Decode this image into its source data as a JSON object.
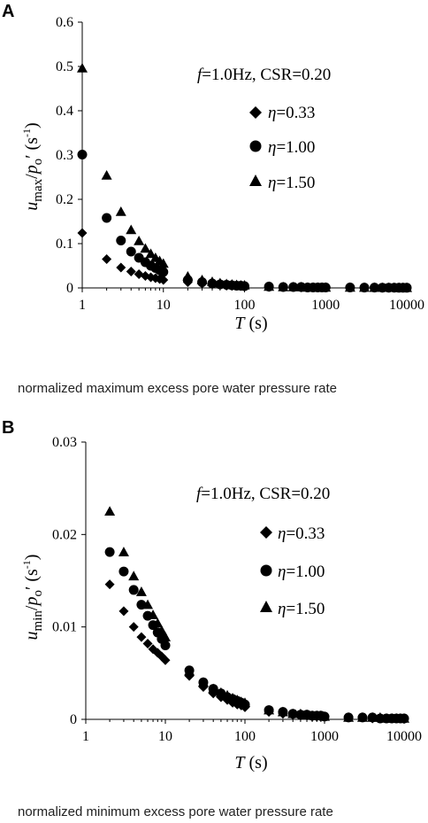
{
  "chart_data": [
    {
      "type": "scatter",
      "panel": "A",
      "caption": "normalized maximum excess pore water pressure rate",
      "xlabel": {
        "italic": "T",
        "rest": " (s)"
      },
      "ylabel": {
        "italic1": "u",
        "sub1": "max",
        "slash": "/",
        "italic2": "p",
        "sub2": "o",
        "rest": "′ (s",
        "sup": "-1",
        "end": ")"
      },
      "xscale": "log",
      "xlim": [
        1,
        10000
      ],
      "ylim": [
        0,
        0.6
      ],
      "yticks": [
        0,
        0.1,
        0.2,
        0.3,
        0.4,
        0.5,
        0.6
      ],
      "ytick_labels": [
        "0",
        "0.1",
        "0.2",
        "0.3",
        "0.4",
        "0.5",
        "0.6"
      ],
      "xticks": [
        1,
        10,
        100,
        1000,
        10000
      ],
      "xtick_labels": [
        "1",
        "10",
        "100",
        "1000",
        "10000"
      ],
      "condition": {
        "f_italic": "f",
        "f_rest": "=1.0Hz,  CSR=0.20"
      },
      "series": [
        {
          "name": "η=0.33",
          "eta_italic": "η",
          "eta_value": "=0.33",
          "marker": "diamond",
          "x": [
            1,
            2,
            3,
            4,
            5,
            6,
            7,
            8,
            9,
            10,
            20,
            30,
            40,
            50,
            60,
            70,
            80,
            90,
            100,
            200,
            300,
            400,
            500,
            600,
            700,
            800,
            900,
            1000,
            2000,
            3000,
            4000,
            5000,
            6000,
            7000,
            8000,
            9000,
            10000
          ],
          "y": [
            0.124,
            0.065,
            0.046,
            0.037,
            0.031,
            0.027,
            0.024,
            0.022,
            0.02,
            0.018,
            0.013,
            0.01,
            0.008,
            0.007,
            0.006,
            0.005,
            0.005,
            0.004,
            0.004,
            0.002,
            0.002,
            0.002,
            0.001,
            0.001,
            0.001,
            0.001,
            0.001,
            0.001,
            0.001,
            0.0008,
            0.0007,
            0.0006,
            0.0005,
            0.0005,
            0.0004,
            0.0004,
            0.0004
          ]
        },
        {
          "name": "η=1.00",
          "eta_italic": "η",
          "eta_value": "=1.00",
          "marker": "circle",
          "x": [
            1,
            2,
            3,
            4,
            5,
            6,
            7,
            8,
            9,
            10,
            20,
            30,
            40,
            50,
            60,
            70,
            80,
            90,
            100,
            200,
            300,
            400,
            500,
            600,
            700,
            800,
            900,
            1000,
            2000,
            3000,
            4000,
            5000,
            6000,
            7000,
            8000,
            9000,
            10000
          ],
          "y": [
            0.301,
            0.158,
            0.107,
            0.082,
            0.068,
            0.058,
            0.05,
            0.045,
            0.04,
            0.036,
            0.018,
            0.013,
            0.01,
            0.008,
            0.007,
            0.006,
            0.005,
            0.005,
            0.004,
            0.003,
            0.002,
            0.002,
            0.002,
            0.001,
            0.001,
            0.001,
            0.001,
            0.001,
            0.001,
            0.0008,
            0.0007,
            0.0006,
            0.0005,
            0.0005,
            0.0004,
            0.0004,
            0.0004
          ]
        },
        {
          "name": "η=1.50",
          "eta_italic": "η",
          "eta_value": "=1.50",
          "marker": "triangle",
          "x": [
            1,
            2,
            3,
            4,
            5,
            6,
            7,
            8,
            9,
            10,
            20,
            30,
            40,
            50,
            60,
            70,
            80,
            90,
            100,
            200,
            300,
            400,
            500,
            600,
            700,
            800,
            900,
            1000,
            2000,
            3000,
            4000,
            5000,
            6000,
            7000,
            8000,
            9000,
            10000
          ],
          "y": [
            0.496,
            0.254,
            0.172,
            0.131,
            0.106,
            0.089,
            0.077,
            0.068,
            0.061,
            0.055,
            0.026,
            0.018,
            0.014,
            0.011,
            0.009,
            0.008,
            0.007,
            0.006,
            0.006,
            0.003,
            0.002,
            0.002,
            0.002,
            0.001,
            0.001,
            0.001,
            0.001,
            0.001,
            0.001,
            0.0008,
            0.0007,
            0.0006,
            0.0005,
            0.0005,
            0.0004,
            0.0004,
            0.0004
          ]
        }
      ]
    },
    {
      "type": "scatter",
      "panel": "B",
      "caption": "normalized minimum excess pore water pressure rate",
      "xlabel": {
        "italic": "T",
        "rest": " (s)"
      },
      "ylabel": {
        "italic1": "u",
        "sub1": "min",
        "slash": "/",
        "italic2": "p",
        "sub2": "o",
        "rest": "′ (s",
        "sup": "-1",
        "end": ")"
      },
      "xscale": "log",
      "xlim": [
        1,
        10000
      ],
      "ylim": [
        0,
        0.03
      ],
      "yticks": [
        0,
        0.01,
        0.02,
        0.03
      ],
      "ytick_labels": [
        "0",
        "0.01",
        "0.02",
        "0.03"
      ],
      "xticks": [
        1,
        10,
        100,
        1000,
        10000
      ],
      "xtick_labels": [
        "1",
        "10",
        "100",
        "1000",
        "10000"
      ],
      "condition": {
        "f_italic": "f",
        "f_rest": "=1.0Hz,  CSR=0.20"
      },
      "series": [
        {
          "name": "η=0.33",
          "eta_italic": "η",
          "eta_value": "=0.33",
          "marker": "diamond",
          "x": [
            2,
            3,
            4,
            5,
            6,
            7,
            8,
            9,
            10,
            20,
            30,
            40,
            50,
            60,
            70,
            80,
            90,
            100,
            200,
            300,
            400,
            500,
            600,
            700,
            800,
            900,
            1000,
            2000,
            3000,
            4000,
            5000,
            6000,
            7000,
            8000,
            9000,
            10000
          ],
          "y": [
            0.0146,
            0.0117,
            0.01,
            0.0089,
            0.0082,
            0.0076,
            0.0072,
            0.0068,
            0.0064,
            0.0047,
            0.0035,
            0.0028,
            0.0024,
            0.0021,
            0.0018,
            0.0016,
            0.0015,
            0.0013,
            0.0008,
            0.0006,
            0.0005,
            0.0004,
            0.0004,
            0.0003,
            0.0003,
            0.0003,
            0.0003,
            0.0002,
            0.0002,
            0.0001,
            0.0001,
            0.0001,
            0.0001,
            0.0001,
            0.0001,
            0.0001
          ]
        },
        {
          "name": "η=1.00",
          "eta_italic": "η",
          "eta_value": "=1.00",
          "marker": "circle",
          "x": [
            2,
            3,
            4,
            5,
            6,
            7,
            8,
            9,
            10,
            20,
            30,
            40,
            50,
            60,
            70,
            80,
            90,
            100,
            200,
            300,
            400,
            500,
            600,
            700,
            800,
            900,
            1000,
            2000,
            3000,
            4000,
            5000,
            6000,
            7000,
            8000,
            9000,
            10000
          ],
          "y": [
            0.0181,
            0.016,
            0.014,
            0.0124,
            0.0112,
            0.0102,
            0.0094,
            0.0087,
            0.008,
            0.0053,
            0.004,
            0.0033,
            0.0028,
            0.0024,
            0.0022,
            0.002,
            0.0018,
            0.0016,
            0.001,
            0.0008,
            0.0006,
            0.0005,
            0.0005,
            0.0004,
            0.0004,
            0.0004,
            0.0003,
            0.0002,
            0.0002,
            0.0002,
            0.0001,
            0.0001,
            0.0001,
            0.0001,
            0.0001,
            0.0001
          ]
        },
        {
          "name": "η=1.50",
          "eta_italic": "η",
          "eta_value": "=1.50",
          "marker": "triangle",
          "x": [
            2,
            3,
            4,
            5,
            6,
            7,
            8,
            9,
            10,
            20,
            30,
            40,
            50,
            60,
            70,
            80,
            90,
            100,
            200,
            300,
            400,
            500,
            600,
            700,
            800,
            900,
            1000,
            2000,
            3000,
            4000,
            5000,
            6000,
            7000,
            8000,
            9000,
            10000
          ],
          "y": [
            0.0225,
            0.0181,
            0.0155,
            0.0138,
            0.0124,
            0.0113,
            0.0104,
            0.0096,
            0.0089,
            0.0052,
            0.004,
            0.0033,
            0.0029,
            0.0026,
            0.0023,
            0.0021,
            0.0019,
            0.0018,
            0.001,
            0.0008,
            0.0006,
            0.0006,
            0.0005,
            0.0004,
            0.0004,
            0.0004,
            0.0003,
            0.0002,
            0.0002,
            0.0002,
            0.0002,
            0.0001,
            0.0001,
            0.0001,
            0.0001,
            0.0001
          ]
        }
      ]
    }
  ]
}
